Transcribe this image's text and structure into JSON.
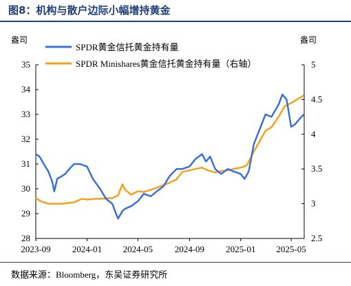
{
  "title": "图8：机构与散户边际小幅增持黄金",
  "source": "数据来源：Bloomberg，东吴证券研究所",
  "chart_data": {
    "type": "line",
    "y_left_unit": "盎司",
    "y_right_unit": "盎司",
    "y_left_lim": [
      28,
      35
    ],
    "y_left_ticks": [
      "28",
      "29",
      "30",
      "31",
      "32",
      "33",
      "34",
      "35"
    ],
    "y_right_lim": [
      2.5,
      5
    ],
    "y_right_ticks": [
      "2.5",
      "3",
      "3.5",
      "4",
      "4.5",
      "5"
    ],
    "x_ticks": [
      "2023-09",
      "2024-01",
      "2024-05",
      "2024-09",
      "2025-01",
      "2025-05"
    ],
    "legend_placement": "top-left",
    "series": [
      {
        "name": "SPDR黄金信托黄金持有量",
        "axis": "left",
        "color": "#3a6fd8",
        "points": [
          [
            "2023-09-01",
            31.4
          ],
          [
            "2023-09-10",
            31.3
          ],
          [
            "2023-09-20",
            31.0
          ],
          [
            "2023-10-01",
            30.7
          ],
          [
            "2023-10-10",
            30.3
          ],
          [
            "2023-10-15",
            29.9
          ],
          [
            "2023-10-22",
            30.4
          ],
          [
            "2023-11-01",
            30.5
          ],
          [
            "2023-11-10",
            30.6
          ],
          [
            "2023-11-20",
            30.8
          ],
          [
            "2023-12-01",
            31.0
          ],
          [
            "2023-12-15",
            31.0
          ],
          [
            "2024-01-01",
            30.9
          ],
          [
            "2024-01-15",
            30.4
          ],
          [
            "2024-02-01",
            30.0
          ],
          [
            "2024-02-15",
            29.6
          ],
          [
            "2024-03-01",
            29.4
          ],
          [
            "2024-03-10",
            29.0
          ],
          [
            "2024-03-15",
            28.8
          ],
          [
            "2024-03-25",
            29.1
          ],
          [
            "2024-04-01",
            29.2
          ],
          [
            "2024-04-15",
            29.3
          ],
          [
            "2024-05-01",
            29.5
          ],
          [
            "2024-05-15",
            29.8
          ],
          [
            "2024-06-01",
            29.7
          ],
          [
            "2024-06-15",
            29.9
          ],
          [
            "2024-07-01",
            30.1
          ],
          [
            "2024-07-15",
            30.5
          ],
          [
            "2024-08-01",
            30.8
          ],
          [
            "2024-08-15",
            30.8
          ],
          [
            "2024-09-01",
            30.9
          ],
          [
            "2024-09-15",
            31.2
          ],
          [
            "2024-10-01",
            31.4
          ],
          [
            "2024-10-10",
            31.1
          ],
          [
            "2024-10-20",
            31.3
          ],
          [
            "2024-11-01",
            30.8
          ],
          [
            "2024-11-15",
            30.6
          ],
          [
            "2024-12-01",
            30.8
          ],
          [
            "2024-12-15",
            30.7
          ],
          [
            "2025-01-01",
            30.6
          ],
          [
            "2025-01-10",
            30.4
          ],
          [
            "2025-01-20",
            30.7
          ],
          [
            "2025-02-01",
            31.8
          ],
          [
            "2025-02-15",
            32.4
          ],
          [
            "2025-03-01",
            33.0
          ],
          [
            "2025-03-15",
            32.9
          ],
          [
            "2025-04-01",
            33.4
          ],
          [
            "2025-04-10",
            33.8
          ],
          [
            "2025-04-20",
            33.6
          ],
          [
            "2025-05-01",
            32.5
          ],
          [
            "2025-05-10",
            32.6
          ],
          [
            "2025-05-20",
            32.8
          ],
          [
            "2025-05-31",
            33.0
          ]
        ]
      },
      {
        "name": "SPDR Minishares黄金信托黄金持有量（右轴）",
        "axis": "right",
        "color": "#f4a11a",
        "points": [
          [
            "2023-09-01",
            3.08
          ],
          [
            "2023-09-15",
            3.03
          ],
          [
            "2023-10-01",
            3.0
          ],
          [
            "2023-11-01",
            3.0
          ],
          [
            "2023-12-01",
            3.02
          ],
          [
            "2023-12-20",
            3.07
          ],
          [
            "2024-01-01",
            3.06
          ],
          [
            "2024-01-20",
            3.07
          ],
          [
            "2024-02-01",
            3.07
          ],
          [
            "2024-02-20",
            3.08
          ],
          [
            "2024-03-01",
            3.08
          ],
          [
            "2024-03-15",
            3.12
          ],
          [
            "2024-03-25",
            3.28
          ],
          [
            "2024-04-01",
            3.2
          ],
          [
            "2024-04-15",
            3.13
          ],
          [
            "2024-05-01",
            3.18
          ],
          [
            "2024-05-15",
            3.17
          ],
          [
            "2024-06-01",
            3.2
          ],
          [
            "2024-06-15",
            3.23
          ],
          [
            "2024-07-01",
            3.27
          ],
          [
            "2024-07-15",
            3.3
          ],
          [
            "2024-08-01",
            3.35
          ],
          [
            "2024-08-15",
            3.46
          ],
          [
            "2024-09-01",
            3.48
          ],
          [
            "2024-09-15",
            3.5
          ],
          [
            "2024-10-01",
            3.52
          ],
          [
            "2024-10-15",
            3.48
          ],
          [
            "2024-11-01",
            3.45
          ],
          [
            "2024-11-15",
            3.47
          ],
          [
            "2024-12-01",
            3.48
          ],
          [
            "2024-12-15",
            3.5
          ],
          [
            "2025-01-01",
            3.52
          ],
          [
            "2025-01-15",
            3.55
          ],
          [
            "2025-02-01",
            3.75
          ],
          [
            "2025-02-15",
            3.9
          ],
          [
            "2025-03-01",
            4.05
          ],
          [
            "2025-03-15",
            4.1
          ],
          [
            "2025-04-01",
            4.25
          ],
          [
            "2025-04-15",
            4.4
          ],
          [
            "2025-05-01",
            4.45
          ],
          [
            "2025-05-15",
            4.5
          ],
          [
            "2025-05-31",
            4.56
          ]
        ]
      }
    ]
  }
}
